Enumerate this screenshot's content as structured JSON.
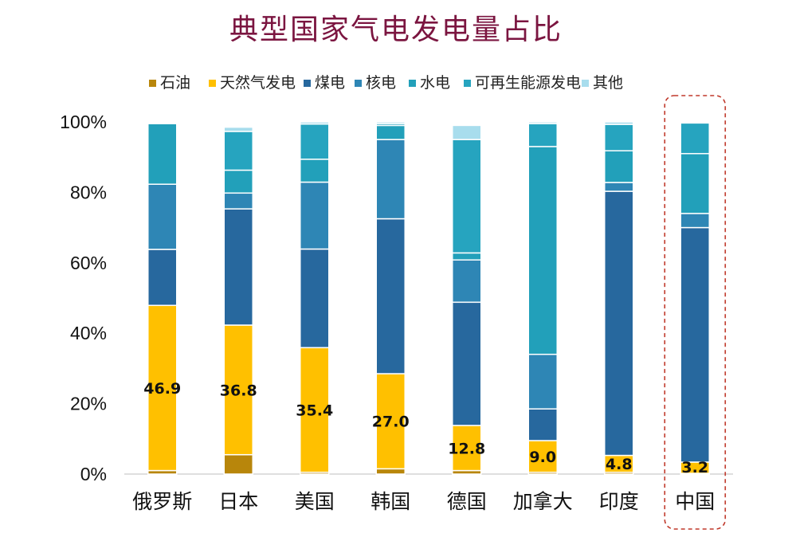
{
  "title": "典型国家气电发电量占比",
  "colors": {
    "oil": "#b8860b",
    "gas": "#ffc000",
    "coal": "#27689e",
    "nuclear": "#2e86b5",
    "hydro": "#22a0ba",
    "renewable": "#26a4bf",
    "other": "#a8dded",
    "highlight_border": "#c0392b",
    "title": "#7b1540"
  },
  "chart_data": {
    "type": "bar",
    "stacked": true,
    "title": "典型国家气电发电量占比",
    "categories": [
      "俄罗斯",
      "日本",
      "美国",
      "韩国",
      "德国",
      "加拿大",
      "印度",
      "中国"
    ],
    "y_ticks": [
      "0%",
      "20%",
      "40%",
      "60%",
      "80%",
      "100%"
    ],
    "ylim": [
      0,
      100
    ],
    "legend_position": "top",
    "highlighted_category": "中国",
    "series": [
      {
        "name": "石油",
        "key": "oil",
        "values": [
          1.0,
          5.5,
          0.5,
          1.5,
          1.0,
          0.5,
          0.5,
          0.2
        ]
      },
      {
        "name": "天然气发电",
        "key": "gas",
        "values": [
          46.9,
          36.8,
          35.4,
          27.0,
          12.8,
          9.0,
          4.8,
          3.2
        ]
      },
      {
        "name": "煤电",
        "key": "coal",
        "values": [
          15.9,
          33.0,
          28.0,
          44.0,
          35.0,
          9.0,
          75.0,
          66.6
        ]
      },
      {
        "name": "核电",
        "key": "nuclear",
        "values": [
          18.5,
          4.5,
          19.0,
          22.5,
          12.0,
          15.5,
          2.5,
          4.0
        ]
      },
      {
        "name": "水电",
        "key": "hydro",
        "values": [
          17.2,
          6.5,
          6.5,
          4.0,
          2.0,
          59.0,
          9.0,
          17.0
        ]
      },
      {
        "name": "可再生能源发电",
        "key": "renewable",
        "values": [
          0.2,
          11.0,
          10.0,
          0.5,
          32.2,
          6.5,
          7.5,
          8.7
        ]
      },
      {
        "name": "其他",
        "key": "other",
        "values": [
          0.3,
          1.2,
          0.6,
          0.5,
          4.0,
          0.5,
          0.7,
          0.3
        ]
      }
    ],
    "data_labels": [
      "46.9",
      "36.8",
      "35.4",
      "27.0",
      "12.8",
      "9.0",
      "4.8",
      "3.2"
    ]
  }
}
